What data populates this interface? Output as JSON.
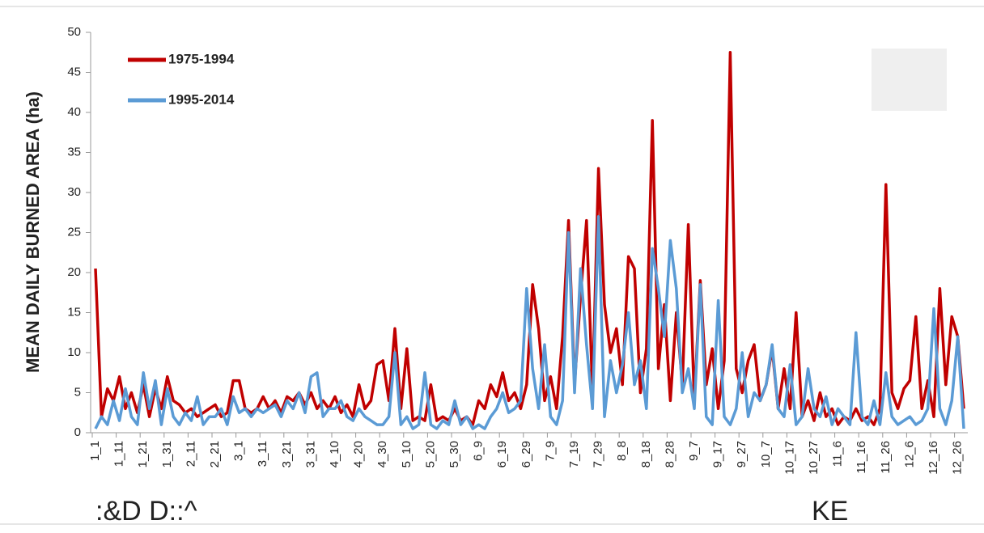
{
  "chart_data": {
    "type": "line",
    "ylabel": "MEAN DAILY BURNED AREA (ha)",
    "ylim": [
      0,
      50
    ],
    "yticks": [
      0,
      5,
      10,
      15,
      20,
      25,
      30,
      35,
      40,
      45,
      50
    ],
    "legend": "top-left",
    "categories": [
      "1_1",
      null,
      null,
      null,
      "1_11",
      null,
      null,
      null,
      "1_21",
      null,
      null,
      null,
      "1_31",
      null,
      null,
      null,
      "2_11",
      null,
      null,
      null,
      "2_21",
      null,
      null,
      null,
      "3_1",
      null,
      null,
      null,
      "3_11",
      null,
      null,
      null,
      "3_21",
      null,
      null,
      null,
      "3_31",
      null,
      null,
      null,
      "4_10",
      null,
      null,
      null,
      "4_20",
      null,
      null,
      null,
      "4_30",
      null,
      null,
      null,
      "5_10",
      null,
      null,
      null,
      "5_20",
      null,
      null,
      null,
      "5_30",
      null,
      null,
      null,
      "6_9",
      null,
      null,
      null,
      "6_19",
      null,
      null,
      null,
      "6_29",
      null,
      null,
      null,
      "7_9",
      null,
      null,
      null,
      "7_19",
      null,
      null,
      null,
      "7_29",
      null,
      null,
      null,
      "8_8",
      null,
      null,
      null,
      "8_18",
      null,
      null,
      null,
      "8_28",
      null,
      null,
      null,
      "9_7",
      null,
      null,
      null,
      "9_17",
      null,
      null,
      null,
      "9_27",
      null,
      null,
      null,
      "10_7",
      null,
      null,
      null,
      "10_17",
      null,
      null,
      null,
      "10_27",
      null,
      null,
      null,
      "11_6",
      null,
      null,
      null,
      "11_16",
      null,
      null,
      null,
      "11_26",
      null,
      null,
      null,
      "12_6",
      null,
      null,
      null,
      "12_16",
      null,
      null,
      null,
      "12_26",
      null
    ],
    "series": [
      {
        "name": "1975-1994",
        "color": "#c00000",
        "values": [
          20.5,
          2,
          5.5,
          4,
          7,
          3,
          5,
          2.5,
          6,
          2,
          5.5,
          3,
          7,
          4,
          3.5,
          2.5,
          3,
          2,
          2.5,
          3,
          3.5,
          2,
          2.5,
          6.5,
          6.5,
          3,
          2.5,
          3,
          4.5,
          3,
          4,
          2.5,
          4.5,
          4,
          5,
          3.5,
          5,
          3,
          4,
          3,
          4.5,
          2.5,
          3.5,
          2,
          6,
          3,
          4,
          8.5,
          9,
          4,
          13,
          3,
          10.5,
          1.5,
          2,
          1.5,
          6,
          1.5,
          2,
          1.5,
          3,
          1.5,
          2,
          1,
          4,
          3,
          6,
          4.5,
          7.5,
          4,
          5,
          3,
          6,
          18.5,
          13,
          4,
          7,
          3,
          12,
          26.5,
          6,
          17,
          26.5,
          5,
          33,
          16,
          10,
          13,
          6,
          22,
          20.5,
          5,
          10.5,
          39,
          8,
          16,
          4,
          15,
          6,
          26,
          4,
          19,
          6,
          10.5,
          3,
          9,
          47.5,
          8,
          5,
          9,
          11,
          4,
          6,
          10.5,
          3,
          8,
          3,
          15,
          2,
          4,
          1.5,
          5,
          2,
          3,
          1,
          2,
          1.5,
          3,
          1.5,
          2,
          1,
          3,
          31,
          5,
          3,
          5.5,
          6.5,
          14.5,
          3,
          6.5,
          2,
          18,
          6,
          14.5,
          12,
          3
        ]
      },
      {
        "name": "1995-2014",
        "color": "#5b9bd5",
        "values": [
          0.5,
          2,
          1,
          4,
          1.5,
          5.5,
          2,
          1,
          7.5,
          3,
          6.5,
          1,
          5.5,
          2,
          1,
          2.5,
          1.5,
          4.5,
          1,
          2,
          2,
          3,
          1,
          4.5,
          2.5,
          3,
          2,
          3,
          2.5,
          3,
          3.5,
          2,
          4,
          3,
          5,
          2.5,
          7,
          7.5,
          2,
          3,
          3,
          4,
          2,
          1.5,
          3,
          2,
          1.5,
          1,
          1,
          2,
          10,
          1,
          2,
          0.5,
          1,
          7.5,
          1,
          0.5,
          1.5,
          1,
          4,
          1,
          2,
          0.5,
          1,
          0.5,
          2,
          3,
          5,
          2.5,
          3,
          4,
          18,
          8,
          3,
          11,
          2,
          1,
          4,
          25,
          5,
          20.5,
          11,
          3,
          27,
          2,
          9,
          5,
          8.5,
          15,
          6,
          9,
          3,
          23,
          18,
          12,
          24,
          18,
          5,
          8,
          3,
          18.5,
          2,
          1,
          16.5,
          2,
          1,
          3,
          10,
          2,
          5,
          4,
          6,
          11,
          3,
          2,
          8.5,
          1,
          2,
          8,
          3,
          2,
          4.5,
          1,
          3,
          2,
          1,
          12.5,
          2,
          1,
          4,
          1,
          7.5,
          2,
          1,
          1.5,
          2,
          1,
          1.5,
          3,
          15.5,
          3,
          1,
          4,
          12,
          0.5
        ]
      }
    ]
  },
  "footer": {
    "left": ":&D D::^",
    "right": "KE"
  }
}
